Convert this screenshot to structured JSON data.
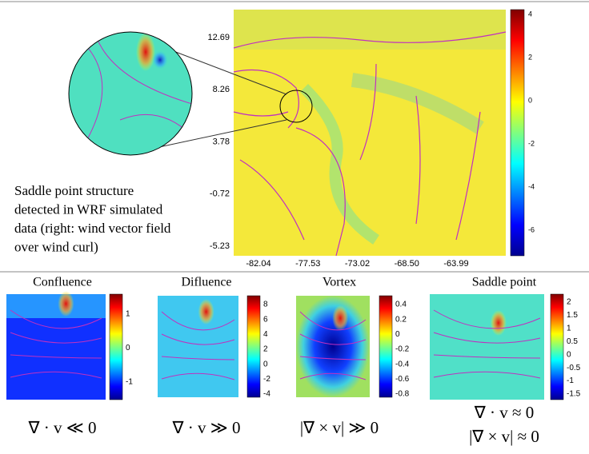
{
  "main": {
    "y_ticks": [
      "12.69",
      "8.26",
      "3.78",
      "-0.72",
      "-5.23"
    ],
    "x_ticks": [
      "-82.04",
      "-77.53",
      "-73.02",
      "-68.50",
      "-63.99"
    ],
    "colorbar_ticks": [
      "4",
      "2",
      "0",
      "-2",
      "-4",
      "-6"
    ],
    "caption": [
      "Saddle point structure",
      "detected in WRF simulated",
      "data (right: wind vector field",
      "over wind curl)"
    ]
  },
  "panels": [
    {
      "title": "Confluence",
      "colorbar_ticks": [
        "1",
        "0",
        "-1"
      ],
      "formula": [
        "∇ · v ≪ 0"
      ]
    },
    {
      "title": "Difluence",
      "colorbar_ticks": [
        "8",
        "6",
        "4",
        "2",
        "0",
        "-2",
        "-4"
      ],
      "formula": [
        "∇ · v ≫ 0"
      ]
    },
    {
      "title": "Vortex",
      "colorbar_ticks": [
        "0.4",
        "0.2",
        "0",
        "-0.2",
        "-0.4",
        "-0.6",
        "-0.8"
      ],
      "formula": [
        "|∇ × v| ≫ 0"
      ]
    },
    {
      "title": "Saddle point",
      "colorbar_ticks": [
        "2",
        "1.5",
        "1",
        "0.5",
        "0",
        "-0.5",
        "-1",
        "-1.5"
      ],
      "formula": [
        "∇ · v ≈ 0",
        "|∇ × v| ≈ 0"
      ]
    }
  ]
}
